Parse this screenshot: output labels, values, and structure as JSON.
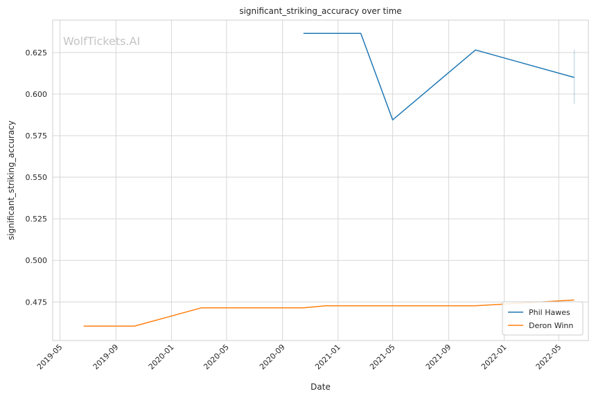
{
  "chart_data": {
    "type": "line",
    "title": "significant_striking_accuracy over time",
    "xlabel": "Date",
    "ylabel": "significant_striking_accuracy",
    "watermark": "WolfTickets.AI",
    "x_range": [
      "2019-04-15",
      "2022-07-05"
    ],
    "ylim": [
      0.4518,
      0.6445
    ],
    "x_ticks": [
      "2019-05",
      "2019-09",
      "2020-01",
      "2020-05",
      "2020-09",
      "2021-01",
      "2021-05",
      "2021-09",
      "2022-01",
      "2022-05"
    ],
    "y_ticks": [
      0.475,
      0.5,
      0.525,
      0.55,
      0.575,
      0.6,
      0.625
    ],
    "y_tick_labels": [
      "0.475",
      "0.500",
      "0.525",
      "0.550",
      "0.575",
      "0.600",
      "0.625"
    ],
    "grid": true,
    "legend_position": "lower right",
    "series": [
      {
        "name": "Phil Hawes",
        "color": "#1f77b4",
        "points": [
          {
            "x": "2020-10-17",
            "y": 0.6365
          },
          {
            "x": "2021-02-20",
            "y": 0.6365
          },
          {
            "x": "2021-05-01",
            "y": 0.5845
          },
          {
            "x": "2021-10-30",
            "y": 0.6265
          },
          {
            "x": "2022-06-04",
            "y": 0.61
          }
        ],
        "error_band": {
          "x": "2022-06-04",
          "low": 0.5942,
          "high": 0.6268
        }
      },
      {
        "name": "Deron Winn",
        "color": "#ff7f0e",
        "points": [
          {
            "x": "2019-06-22",
            "y": 0.4605
          },
          {
            "x": "2019-10-12",
            "y": 0.4605
          },
          {
            "x": "2020-03-07",
            "y": 0.4715
          },
          {
            "x": "2020-10-17",
            "y": 0.4715
          },
          {
            "x": "2020-12-05",
            "y": 0.4727
          },
          {
            "x": "2021-10-30",
            "y": 0.4727
          },
          {
            "x": "2022-06-04",
            "y": 0.4762
          }
        ]
      }
    ]
  }
}
